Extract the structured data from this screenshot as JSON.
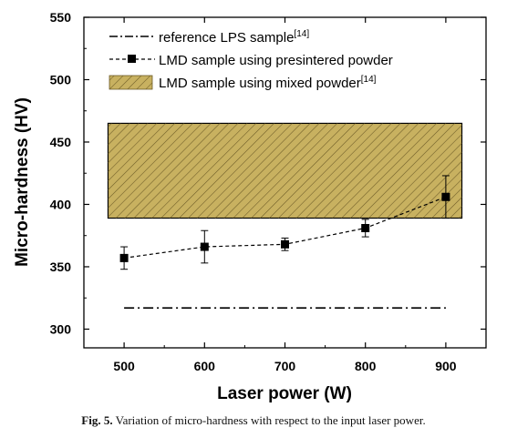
{
  "chart_data": {
    "type": "line",
    "xlabel": "Laser power (W)",
    "ylabel": "Micro-hardness (HV)",
    "xlim": [
      450,
      950
    ],
    "ylim": [
      285,
      550
    ],
    "x_ticks": [
      500,
      600,
      700,
      800,
      900
    ],
    "y_ticks": [
      300,
      350,
      400,
      450,
      500,
      550
    ],
    "grid": false,
    "legend_position": "top-left",
    "series": [
      {
        "name": "LMD sample using presintered powder",
        "x": [
          500,
          600,
          700,
          800,
          900
        ],
        "y": [
          357,
          366,
          368,
          381,
          406
        ],
        "yerr": [
          9,
          13,
          5,
          7,
          17
        ],
        "marker": "square",
        "line": "dashed",
        "color": "#000000"
      }
    ],
    "reference_line": {
      "name": "reference LPS sample",
      "name_sup": "[14]",
      "y": 317,
      "x_range": [
        500,
        900
      ],
      "line": "dash-dot",
      "color": "#000000"
    },
    "band": {
      "name": "LMD sample using mixed powder",
      "name_sup": "[14]",
      "y_range": [
        389,
        465
      ],
      "x_range": [
        480,
        920
      ],
      "fill": "#c8b160",
      "hatch": "diagonal"
    }
  },
  "caption": {
    "label": "Fig. 5.",
    "text": "Variation of micro-hardness with respect to the input laser power."
  }
}
